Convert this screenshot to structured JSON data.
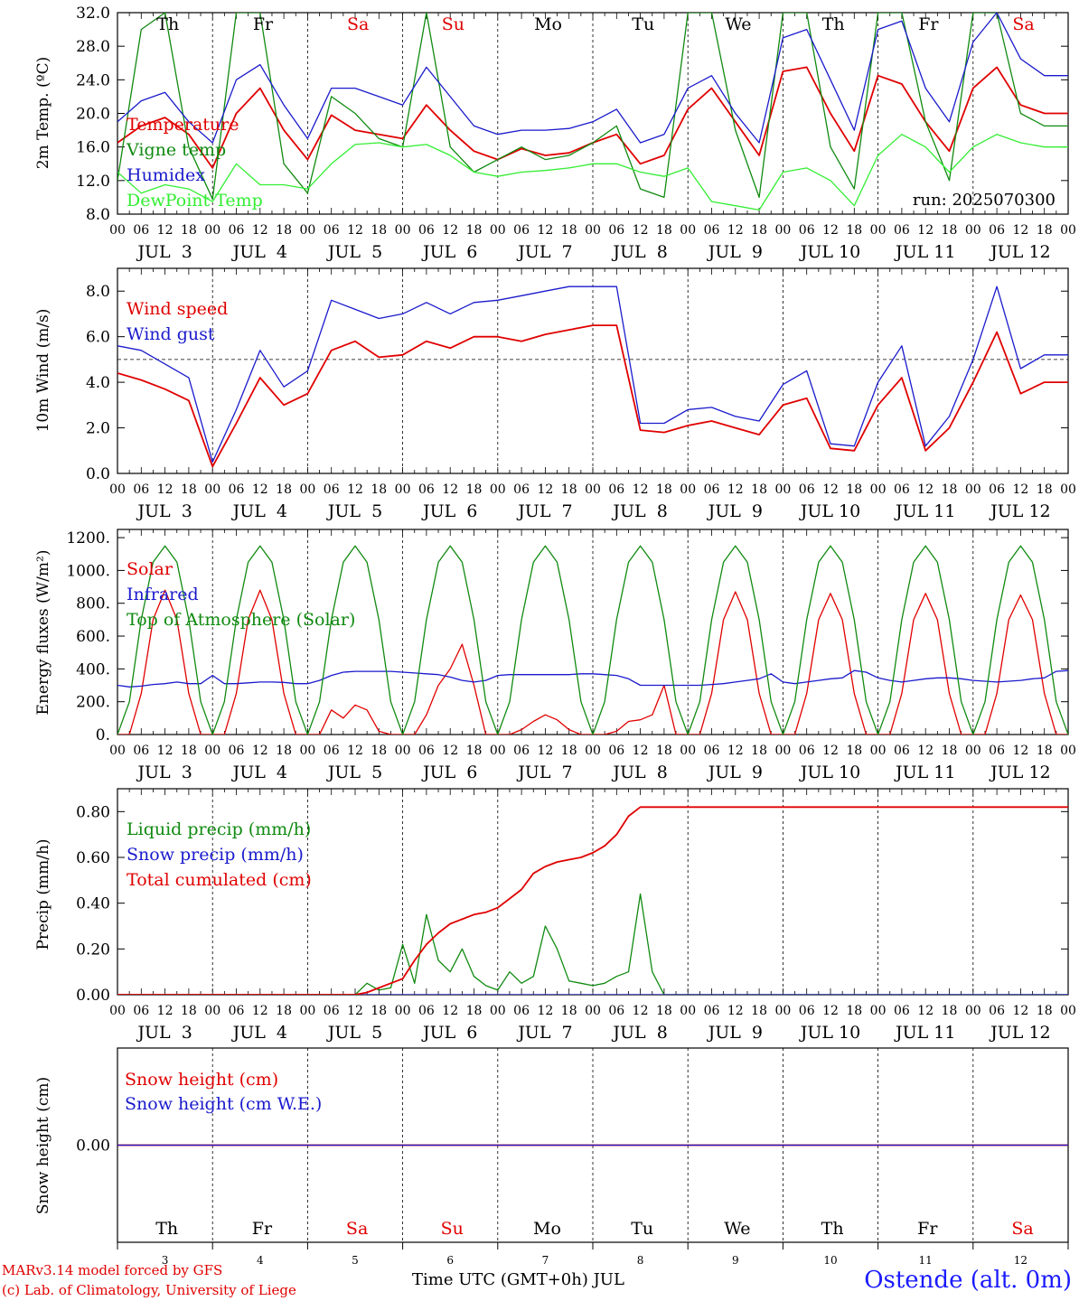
{
  "page": {
    "model_line": "MARv3.14 model forced by GFS",
    "copyright_line": "(c) Lab. of Climatology, University of Liege",
    "xlabel": "Time UTC (GMT+0h) JUL",
    "station": "Ostende (alt. 0m)"
  },
  "colors": {
    "temperature": "#e00000",
    "vigne": "#108a10",
    "humidex": "#1a1acc",
    "dewpoint": "#33ee33",
    "weekend": "#e00000",
    "weekday": "#000000"
  },
  "axis": {
    "days": [
      "Th",
      "Fr",
      "Sa",
      "Su",
      "Mo",
      "Tu",
      "We",
      "Th",
      "Fr",
      "Sa"
    ],
    "day_numbers": [
      "3",
      "4",
      "5",
      "6",
      "7",
      "8",
      "9",
      "10",
      "11",
      "12"
    ],
    "date_labels": [
      "JUL  3",
      "JUL  4",
      "JUL  5",
      "JUL  6",
      "JUL  7",
      "JUL  8",
      "JUL  9",
      "JUL 10",
      "JUL 11",
      "JUL 12"
    ],
    "hour_labels": [
      "00",
      "06",
      "12",
      "18"
    ],
    "weekend_days": [
      "Sa",
      "Su"
    ]
  },
  "chart_data": [
    {
      "type": "line",
      "ylabel": "2m Temp. (ºC)",
      "ylim": [
        8,
        32
      ],
      "yticks": [
        "8.0",
        "12.0",
        "16.0",
        "20.0",
        "24.0",
        "28.0",
        "32.0"
      ],
      "run_label": "run: 2025070300",
      "x_hours": [
        0,
        6,
        12,
        18,
        24,
        30,
        36,
        42,
        48,
        54,
        60,
        66,
        72,
        78,
        84,
        90,
        96,
        102,
        108,
        114,
        120,
        126,
        132,
        138,
        144,
        150,
        156,
        162,
        168,
        174,
        180,
        186,
        192,
        198,
        204,
        210,
        216,
        222,
        228,
        234,
        240
      ],
      "series": [
        {
          "name": "Temperature",
          "color": "temperature",
          "values": [
            16.5,
            18.5,
            19.5,
            17.5,
            13.5,
            20.0,
            23.0,
            18.0,
            14.5,
            19.8,
            18.0,
            17.5,
            17.0,
            21.0,
            18.0,
            15.5,
            14.5,
            15.8,
            15.0,
            15.3,
            16.5,
            17.5,
            14.0,
            15.0,
            20.5,
            23.0,
            19.0,
            15.0,
            25.0,
            25.5,
            20.0,
            15.5,
            24.5,
            23.5,
            19.0,
            15.5,
            23.0,
            25.5,
            21.0,
            20.0,
            20.0
          ]
        },
        {
          "name": "Vigne temp",
          "color": "vigne",
          "values": [
            12.0,
            30.0,
            32.0,
            16.0,
            9.8,
            32.0,
            32.0,
            14.0,
            10.5,
            22.0,
            20.0,
            17.0,
            16.0,
            32.0,
            16.0,
            13.0,
            14.5,
            16.0,
            14.5,
            15.0,
            16.5,
            18.5,
            11.0,
            10.0,
            32.0,
            32.0,
            18.0,
            10.0,
            32.0,
            32.0,
            16.0,
            11.0,
            32.0,
            32.0,
            19.0,
            12.0,
            32.0,
            32.0,
            20.0,
            18.5,
            18.5
          ]
        },
        {
          "name": "Humidex",
          "color": "humidex",
          "values": [
            19.0,
            21.5,
            22.5,
            19.0,
            16.5,
            24.0,
            25.8,
            21.0,
            17.0,
            23.0,
            23.0,
            22.0,
            21.0,
            25.5,
            22.0,
            18.5,
            17.5,
            18.0,
            18.0,
            18.2,
            19.0,
            20.5,
            16.5,
            17.5,
            23.0,
            24.5,
            20.0,
            16.5,
            29.0,
            30.0,
            24.0,
            18.0,
            30.0,
            31.0,
            23.0,
            19.0,
            28.5,
            32.0,
            26.5,
            24.5,
            24.5
          ]
        },
        {
          "name": "DewPoint Temp",
          "color": "dewpoint",
          "values": [
            13.0,
            10.5,
            11.5,
            11.0,
            9.5,
            14.0,
            11.5,
            11.5,
            11.0,
            14.0,
            16.3,
            16.5,
            16.0,
            16.3,
            15.0,
            13.0,
            12.5,
            13.0,
            13.2,
            13.5,
            14.0,
            14.0,
            13.0,
            12.5,
            13.5,
            9.5,
            9.0,
            8.5,
            13.0,
            13.5,
            12.0,
            9.0,
            15.0,
            17.5,
            16.0,
            13.0,
            16.0,
            17.5,
            16.5,
            16.0,
            16.0
          ]
        }
      ]
    },
    {
      "type": "line",
      "ylabel": "10m Wind (m/s)",
      "ylim": [
        0,
        9
      ],
      "yticks": [
        "0.0",
        "2.0",
        "4.0",
        "6.0",
        "8.0"
      ],
      "ref_line": 5.0,
      "x_hours": [
        0,
        6,
        12,
        18,
        24,
        30,
        36,
        42,
        48,
        54,
        60,
        66,
        72,
        78,
        84,
        90,
        96,
        102,
        108,
        114,
        120,
        126,
        132,
        138,
        144,
        150,
        156,
        162,
        168,
        174,
        180,
        186,
        192,
        198,
        204,
        210,
        216,
        222,
        228,
        234,
        240
      ],
      "series": [
        {
          "name": "Wind speed",
          "color": "temperature",
          "values": [
            4.4,
            4.1,
            3.7,
            3.2,
            0.3,
            2.2,
            4.2,
            3.0,
            3.5,
            5.4,
            5.8,
            5.1,
            5.2,
            5.8,
            5.5,
            6.0,
            6.0,
            5.8,
            6.1,
            6.3,
            6.5,
            6.5,
            1.9,
            1.8,
            2.1,
            2.3,
            2.0,
            1.7,
            3.0,
            3.3,
            1.1,
            1.0,
            3.0,
            4.2,
            1.0,
            2.0,
            4.0,
            6.2,
            3.5,
            4.0,
            4.0
          ]
        },
        {
          "name": "Wind gust",
          "color": "humidex",
          "values": [
            5.6,
            5.4,
            4.8,
            4.2,
            0.5,
            2.8,
            5.4,
            3.8,
            4.5,
            7.6,
            7.2,
            6.8,
            7.0,
            7.5,
            7.0,
            7.5,
            7.6,
            7.8,
            8.0,
            8.2,
            8.2,
            8.2,
            2.2,
            2.2,
            2.8,
            2.9,
            2.5,
            2.3,
            3.9,
            4.5,
            1.3,
            1.2,
            4.0,
            5.6,
            1.2,
            2.5,
            5.0,
            8.2,
            4.6,
            5.2,
            5.2
          ]
        }
      ]
    },
    {
      "type": "line",
      "ylabel": "Energy fluxes (W/m²)",
      "ylim": [
        0,
        1250
      ],
      "yticks": [
        "0.",
        "200.",
        "400.",
        "600.",
        "800.",
        "1000.",
        "1200."
      ],
      "x_hours": [
        0,
        3,
        6,
        9,
        12,
        15,
        18,
        21,
        24,
        27,
        30,
        33,
        36,
        39,
        42,
        45,
        48,
        51,
        54,
        57,
        60,
        63,
        66,
        69,
        72,
        75,
        78,
        81,
        84,
        87,
        90,
        93,
        96,
        99,
        102,
        105,
        108,
        111,
        114,
        117,
        120,
        123,
        126,
        129,
        132,
        135,
        138,
        141,
        144,
        147,
        150,
        153,
        156,
        159,
        162,
        165,
        168,
        171,
        174,
        177,
        180,
        183,
        186,
        189,
        192,
        195,
        198,
        201,
        204,
        207,
        210,
        213,
        216,
        219,
        222,
        225,
        228,
        231,
        234,
        237,
        240
      ],
      "series": [
        {
          "name": "Solar",
          "color": "temperature",
          "values": [
            0,
            0,
            250,
            700,
            880,
            700,
            250,
            0,
            0,
            0,
            250,
            700,
            880,
            700,
            250,
            0,
            0,
            0,
            150,
            100,
            180,
            150,
            20,
            0,
            0,
            0,
            120,
            300,
            400,
            550,
            300,
            0,
            0,
            0,
            30,
            80,
            120,
            90,
            30,
            0,
            0,
            0,
            20,
            80,
            90,
            120,
            300,
            0,
            0,
            0,
            250,
            700,
            870,
            700,
            250,
            0,
            0,
            0,
            250,
            700,
            860,
            700,
            250,
            0,
            0,
            0,
            250,
            700,
            860,
            700,
            250,
            0,
            0,
            0,
            250,
            700,
            850,
            700,
            250,
            0,
            0
          ]
        },
        {
          "name": "Infrared",
          "color": "humidex",
          "values": [
            300,
            290,
            295,
            305,
            310,
            320,
            310,
            310,
            360,
            310,
            310,
            315,
            320,
            320,
            318,
            310,
            310,
            330,
            360,
            380,
            385,
            385,
            385,
            385,
            380,
            375,
            370,
            365,
            350,
            330,
            320,
            330,
            360,
            365,
            365,
            365,
            365,
            365,
            365,
            370,
            370,
            365,
            360,
            340,
            300,
            300,
            300,
            300,
            300,
            300,
            305,
            310,
            320,
            330,
            340,
            370,
            320,
            310,
            320,
            330,
            340,
            345,
            390,
            380,
            345,
            330,
            320,
            330,
            340,
            345,
            345,
            340,
            330,
            325,
            320,
            325,
            330,
            340,
            345,
            385,
            390
          ]
        },
        {
          "name": "Top of Atmosphere (Solar)",
          "color": "vigne",
          "values": [
            0,
            200,
            700,
            1050,
            1150,
            1050,
            700,
            200,
            0,
            200,
            700,
            1050,
            1150,
            1050,
            700,
            200,
            0,
            200,
            700,
            1050,
            1150,
            1050,
            700,
            200,
            0,
            200,
            700,
            1050,
            1150,
            1050,
            700,
            200,
            0,
            200,
            700,
            1050,
            1150,
            1050,
            700,
            200,
            0,
            200,
            700,
            1050,
            1150,
            1050,
            700,
            200,
            0,
            200,
            700,
            1050,
            1150,
            1050,
            700,
            200,
            0,
            200,
            700,
            1050,
            1150,
            1050,
            700,
            200,
            0,
            200,
            700,
            1050,
            1150,
            1050,
            700,
            200,
            0,
            200,
            700,
            1050,
            1150,
            1050,
            700,
            200,
            0
          ]
        }
      ]
    },
    {
      "type": "line",
      "ylabel": "Precip (mm/h)",
      "ylim": [
        0,
        0.9
      ],
      "yticks": [
        "0.00",
        "0.20",
        "0.40",
        "0.60",
        "0.80"
      ],
      "x_hours": [
        0,
        6,
        12,
        18,
        24,
        30,
        36,
        42,
        48,
        54,
        60,
        63,
        66,
        69,
        72,
        75,
        78,
        81,
        84,
        87,
        90,
        93,
        96,
        99,
        102,
        105,
        108,
        111,
        114,
        117,
        120,
        123,
        126,
        129,
        132,
        135,
        138,
        144,
        150,
        156,
        162,
        168,
        174,
        180,
        186,
        192,
        198,
        204,
        210,
        216,
        222,
        228,
        234,
        240
      ],
      "series": [
        {
          "name": "Liquid precip (mm/h)",
          "color": "vigne",
          "values": [
            0,
            0,
            0,
            0,
            0,
            0,
            0,
            0,
            0,
            0,
            0,
            0.05,
            0.02,
            0.03,
            0.22,
            0.05,
            0.35,
            0.15,
            0.1,
            0.2,
            0.08,
            0.04,
            0.02,
            0.1,
            0.05,
            0.08,
            0.3,
            0.2,
            0.06,
            0.05,
            0.04,
            0.05,
            0.08,
            0.1,
            0.44,
            0.1,
            0,
            0,
            0,
            0,
            0,
            0,
            0,
            0,
            0,
            0,
            0,
            0,
            0,
            0,
            0,
            0,
            0,
            0
          ]
        },
        {
          "name": "Snow precip (mm/h)",
          "color": "humidex",
          "values": [
            0,
            0,
            0,
            0,
            0,
            0,
            0,
            0,
            0,
            0,
            0,
            0,
            0,
            0,
            0,
            0,
            0,
            0,
            0,
            0,
            0,
            0,
            0,
            0,
            0,
            0,
            0,
            0,
            0,
            0,
            0,
            0,
            0,
            0,
            0,
            0,
            0,
            0,
            0,
            0,
            0,
            0,
            0,
            0,
            0,
            0,
            0,
            0,
            0,
            0,
            0,
            0,
            0,
            0
          ]
        },
        {
          "name": "Total cumulated (cm)",
          "color": "temperature",
          "values": [
            0,
            0,
            0,
            0,
            0,
            0,
            0,
            0,
            0,
            0,
            0,
            0.01,
            0.03,
            0.05,
            0.07,
            0.15,
            0.22,
            0.27,
            0.31,
            0.33,
            0.35,
            0.36,
            0.38,
            0.42,
            0.46,
            0.53,
            0.56,
            0.58,
            0.59,
            0.6,
            0.62,
            0.65,
            0.7,
            0.78,
            0.82,
            0.82,
            0.82,
            0.82,
            0.82,
            0.82,
            0.82,
            0.82,
            0.82,
            0.82,
            0.82,
            0.82,
            0.82,
            0.82,
            0.82,
            0.82,
            0.82,
            0.82,
            0.82,
            0.82
          ]
        }
      ]
    },
    {
      "type": "line",
      "ylabel": "Snow height (cm)",
      "ylim": [
        -1,
        1
      ],
      "yticks": [
        "0.00"
      ],
      "x_hours": [
        0,
        240
      ],
      "series": [
        {
          "name": "Snow height (cm)",
          "color": "temperature",
          "values": [
            0,
            0
          ]
        },
        {
          "name": "Snow height (cm W.E.)",
          "color": "humidex",
          "values": [
            0,
            0
          ]
        }
      ]
    }
  ]
}
